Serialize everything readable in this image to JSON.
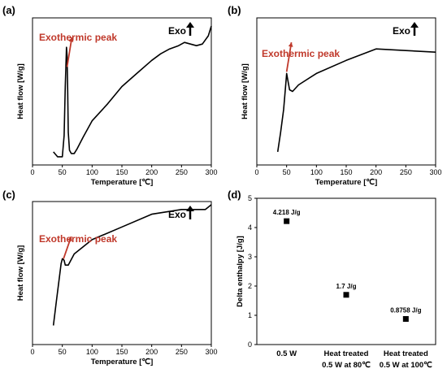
{
  "panels": [
    {
      "id": "a",
      "label": "(a)",
      "xlabel": "Temperature [℃]",
      "ylabel": "Heat flow [W/g]",
      "annotation": "Exothermic peak",
      "exo": "Exo",
      "xlim": [
        0,
        300
      ],
      "xticks": [
        0,
        50,
        100,
        150,
        200,
        250,
        300
      ]
    },
    {
      "id": "b",
      "label": "(b)",
      "xlabel": "Temperature [℃]",
      "ylabel": "Heat flow [W/g]",
      "annotation": "Exothermic peak",
      "exo": "Exo",
      "xlim": [
        0,
        300
      ],
      "xticks": [
        0,
        50,
        100,
        150,
        200,
        250,
        300
      ]
    },
    {
      "id": "c",
      "label": "(c)",
      "xlabel": "Temperature [℃]",
      "ylabel": "Heat flow [W/g]",
      "annotation": "Exothermic peak",
      "exo": "Exo",
      "xlim": [
        0,
        300
      ],
      "xticks": [
        0,
        50,
        100,
        150,
        200,
        250,
        300
      ]
    },
    {
      "id": "d",
      "label": "(d)",
      "ylabel": "Delta enthalpy [J/g]"
    }
  ],
  "chart_data": [
    {
      "type": "line",
      "panel": "a",
      "x": [
        35,
        42,
        50,
        53,
        55,
        57,
        58,
        59,
        60,
        62,
        65,
        70,
        75,
        85,
        100,
        125,
        150,
        175,
        200,
        215,
        230,
        245,
        255,
        265,
        275,
        285,
        295,
        300
      ],
      "y": [
        0.08,
        0.05,
        0.05,
        0.18,
        0.48,
        0.72,
        0.67,
        0.45,
        0.2,
        0.09,
        0.07,
        0.07,
        0.1,
        0.17,
        0.27,
        0.37,
        0.48,
        0.56,
        0.64,
        0.68,
        0.71,
        0.73,
        0.75,
        0.74,
        0.73,
        0.74,
        0.79,
        0.85
      ]
    },
    {
      "type": "line",
      "panel": "b",
      "x": [
        35,
        40,
        45,
        48,
        50,
        52,
        55,
        60,
        70,
        100,
        150,
        200,
        250,
        300
      ],
      "y": [
        0.08,
        0.2,
        0.34,
        0.47,
        0.56,
        0.52,
        0.46,
        0.45,
        0.49,
        0.56,
        0.64,
        0.71,
        0.7,
        0.69
      ]
    },
    {
      "type": "line",
      "panel": "c",
      "x": [
        35,
        40,
        45,
        48,
        50,
        53,
        55,
        60,
        70,
        100,
        150,
        200,
        250,
        270,
        290,
        300
      ],
      "y": [
        0.12,
        0.27,
        0.42,
        0.51,
        0.54,
        0.53,
        0.5,
        0.5,
        0.57,
        0.66,
        0.74,
        0.82,
        0.85,
        0.85,
        0.85,
        0.88
      ]
    },
    {
      "type": "scatter",
      "panel": "d",
      "categories": [
        "0.5 W",
        "Heat treated\n0.5 W at 80℃",
        "Heat treated\n0.5 W at 100℃"
      ],
      "values": [
        4.218,
        1.7,
        0.8758
      ],
      "data_labels": [
        "4.218 J/g",
        "1.7 J/g",
        "0.8758 J/g"
      ],
      "ylabel": "Delta enthalpy [J/g]",
      "ylim": [
        0,
        5
      ],
      "yticks": [
        0,
        1,
        2,
        3,
        4,
        5
      ]
    }
  ]
}
